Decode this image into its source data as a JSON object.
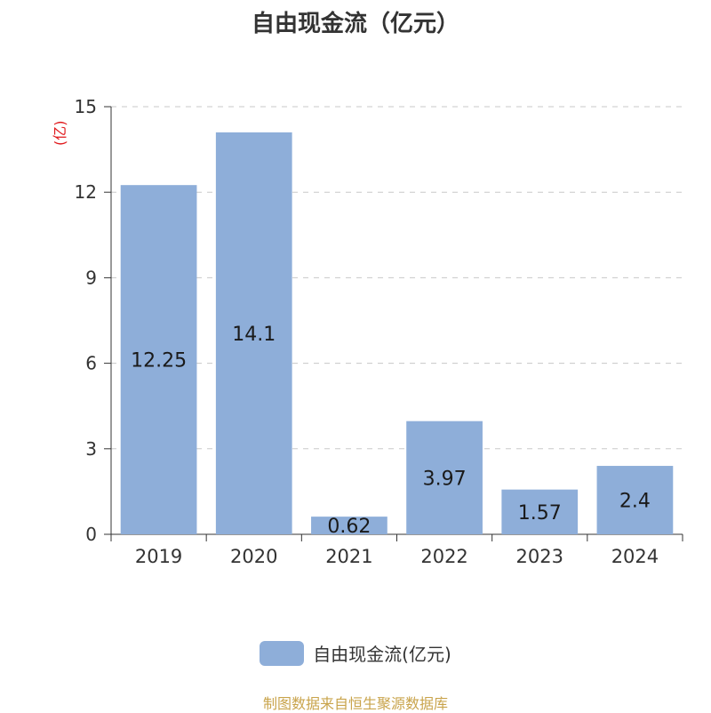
{
  "chart_data": {
    "type": "bar",
    "title": "自由现金流（亿元）",
    "unit_label": "(亿)",
    "categories": [
      "2019",
      "2020",
      "2021",
      "2022",
      "2023",
      "2024"
    ],
    "series": [
      {
        "name": "自由现金流(亿元)",
        "values": [
          12.25,
          14.1,
          0.62,
          3.97,
          1.57,
          2.4
        ],
        "labels": [
          "12.25",
          "14.1",
          "0.62",
          "3.97",
          "1.57",
          "2.4"
        ]
      }
    ],
    "ylim": [
      0,
      15
    ],
    "yticks": [
      "0",
      "3",
      "6",
      "9",
      "12",
      "15"
    ],
    "grid": true,
    "legend": "bottom",
    "bar_color": "#8eaed9"
  },
  "footer": {
    "source": "制图数据来自恒生聚源数据库"
  }
}
